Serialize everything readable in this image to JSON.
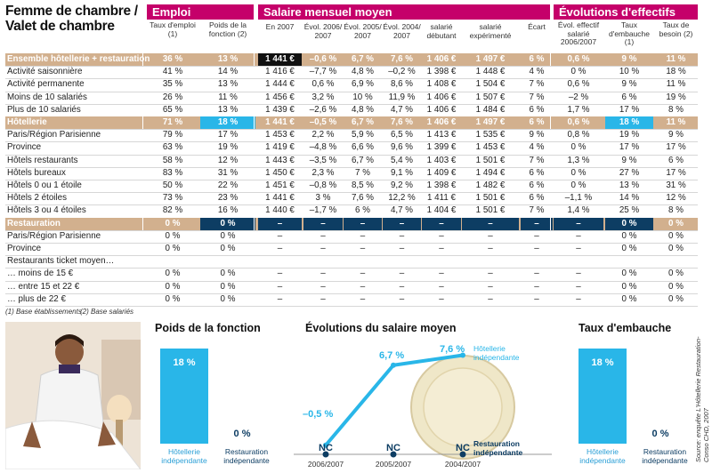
{
  "title": "Femme de chambre / Valet de chambre",
  "groups": {
    "emploi": "Emploi",
    "salaire": "Salaire mensuel moyen",
    "effectifs": "Évolutions d'effectifs"
  },
  "columns": [
    "Taux d'emploi (1)",
    "Poids de la fonction (2)",
    "En 2007",
    "Évol. 2006/ 2007",
    "Évol. 2005/ 2007",
    "Évol. 2004/ 2007",
    "salarié débutant",
    "salarié expérimenté",
    "Écart",
    "Évol. effectif salarié 2006/2007",
    "Taux d'embauche (1)",
    "Taux de besoin (2)"
  ],
  "rows": [
    {
      "label": "Ensemble hôtellerie + restauration",
      "hl": true,
      "v": [
        "36 %",
        "13 %",
        "1 441 €",
        "–0,6 %",
        "6,7 %",
        "7,6 %",
        "1 406 €",
        "1 497 €",
        "6 %",
        "0,6 %",
        "9 %",
        "11 %"
      ]
    },
    {
      "label": "Activité saisonnière",
      "v": [
        "41 %",
        "14 %",
        "1 416 €",
        "–7,7 %",
        "4,8 %",
        "–0,2 %",
        "1 398 €",
        "1 448 €",
        "4 %",
        "0 %",
        "10 %",
        "18 %"
      ]
    },
    {
      "label": "Activité permanente",
      "v": [
        "35 %",
        "13 %",
        "1 444 €",
        "0,6 %",
        "6,9 %",
        "8,6 %",
        "1 408 €",
        "1 504 €",
        "7 %",
        "0,6 %",
        "9 %",
        "11 %"
      ]
    },
    {
      "label": "Moins de 10 salariés",
      "v": [
        "26 %",
        "11 %",
        "1 456 €",
        "3,2 %",
        "10 %",
        "11,9 %",
        "1 406 €",
        "1 507 €",
        "7 %",
        "–2 %",
        "6 %",
        "19 %"
      ]
    },
    {
      "label": "Plus de 10 salariés",
      "v": [
        "65 %",
        "13 %",
        "1 439 €",
        "–2,6 %",
        "4,8 %",
        "4,7 %",
        "1 406 €",
        "1 484 €",
        "6 %",
        "1,7 %",
        "17 %",
        "8 %"
      ]
    },
    {
      "label": "Hôtellerie",
      "hl": true,
      "v": [
        "71 %",
        "18 %",
        "1 441 €",
        "–0,5 %",
        "6,7 %",
        "7,6 %",
        "1 406 €",
        "1 497 €",
        "6 %",
        "0,6 %",
        "18 %",
        "11 %"
      ]
    },
    {
      "label": "Paris/Région Parisienne",
      "v": [
        "79 %",
        "17 %",
        "1 453 €",
        "2,2 %",
        "5,9 %",
        "6,5 %",
        "1 413 €",
        "1 535 €",
        "9 %",
        "0,8 %",
        "19 %",
        "9 %"
      ]
    },
    {
      "label": "Province",
      "v": [
        "63 %",
        "19 %",
        "1 419 €",
        "–4,8 %",
        "6,6 %",
        "9,6 %",
        "1 399 €",
        "1 453 €",
        "4 %",
        "0 %",
        "17 %",
        "17 %"
      ]
    },
    {
      "label": "Hôtels restaurants",
      "v": [
        "58 %",
        "12 %",
        "1 443 €",
        "–3,5 %",
        "6,7 %",
        "5,4 %",
        "1 403 €",
        "1 501 €",
        "7 %",
        "1,3 %",
        "9 %",
        "6 %"
      ]
    },
    {
      "label": "Hôtels bureaux",
      "v": [
        "83 %",
        "31 %",
        "1 450 €",
        "2,3 %",
        "7 %",
        "9,1 %",
        "1 409 €",
        "1 494 €",
        "6 %",
        "0 %",
        "27 %",
        "17 %"
      ]
    },
    {
      "label": "Hôtels 0 ou 1 étoile",
      "v": [
        "50 %",
        "22 %",
        "1 451 €",
        "–0,8 %",
        "8,5 %",
        "9,2 %",
        "1 398 €",
        "1 482 €",
        "6 %",
        "0 %",
        "13 %",
        "31 %"
      ]
    },
    {
      "label": "Hôtels 2 étoiles",
      "v": [
        "73 %",
        "23 %",
        "1 441 €",
        "3 %",
        "7,6 %",
        "12,2 %",
        "1 411 €",
        "1 501 €",
        "6 %",
        "–1,1 %",
        "14 %",
        "12 %"
      ]
    },
    {
      "label": "Hôtels 3 ou 4 étoiles",
      "v": [
        "82 %",
        "16 %",
        "1 440 €",
        "–1,7 %",
        "6 %",
        "4,7 %",
        "1 404 €",
        "1 501 €",
        "7 %",
        "1,4 %",
        "25 %",
        "8 %"
      ]
    },
    {
      "label": "Restauration",
      "hl": true,
      "v": [
        "0 %",
        "0 %",
        "–",
        "–",
        "–",
        "–",
        "–",
        "–",
        "–",
        "–",
        "0 %",
        "0 %"
      ]
    },
    {
      "label": "Paris/Région Parisienne",
      "v": [
        "0 %",
        "0 %",
        "–",
        "–",
        "–",
        "–",
        "–",
        "–",
        "–",
        "–",
        "0 %",
        "0 %"
      ]
    },
    {
      "label": "Province",
      "v": [
        "0 %",
        "0 %",
        "–",
        "–",
        "–",
        "–",
        "–",
        "–",
        "–",
        "–",
        "0 %",
        "0 %"
      ]
    },
    {
      "label": "Restaurants ticket moyen…",
      "v": [
        "",
        "",
        "",
        "",
        "",
        "",
        "",
        "",
        "",
        "",
        "",
        ""
      ]
    },
    {
      "label": "… moins de 15 €",
      "v": [
        "0 %",
        "0 %",
        "–",
        "–",
        "–",
        "–",
        "–",
        "–",
        "–",
        "–",
        "0 %",
        "0 %"
      ]
    },
    {
      "label": "… entre 15 et 22 €",
      "v": [
        "0 %",
        "0 %",
        "–",
        "–",
        "–",
        "–",
        "–",
        "–",
        "–",
        "–",
        "0 %",
        "0 %"
      ]
    },
    {
      "label": "… plus de 22 €",
      "v": [
        "0 %",
        "0 %",
        "–",
        "–",
        "–",
        "–",
        "–",
        "–",
        "–",
        "–",
        "0 %",
        "0 %"
      ]
    }
  ],
  "notes": {
    "n1": "(1) Base établissements",
    "n2": "(2) Base salariés"
  },
  "source": "Source: enquête L'Hôtellerie Restauration-Conso CHD, 2007",
  "chart_data": [
    {
      "type": "bar",
      "title": "Poids de la fonction",
      "categories": [
        "Hôtellerie indépendante",
        "Restauration indépendante"
      ],
      "values": [
        18,
        0
      ],
      "value_labels": [
        "18 %",
        "0 %"
      ],
      "colors": [
        "#29b6e8",
        "#0d3d63"
      ]
    },
    {
      "type": "line",
      "title": "Évolutions du salaire moyen",
      "categories": [
        "2006/2007",
        "2005/2007",
        "2004/2007"
      ],
      "series": [
        {
          "name": "Hôtellerie indépendante",
          "values": [
            -0.5,
            6.7,
            7.6
          ],
          "labels": [
            "–0,5 %",
            "6,7 %",
            "7,6 %"
          ],
          "color": "#29b6e8"
        },
        {
          "name": "Restauration indépendante",
          "values": [
            null,
            null,
            null
          ],
          "labels": [
            "NC",
            "NC",
            "NC"
          ],
          "color": "#0d3d63"
        }
      ]
    },
    {
      "type": "bar",
      "title": "Taux d'embauche",
      "categories": [
        "Hôtellerie indépendante",
        "Restauration indépendante"
      ],
      "values": [
        18,
        0
      ],
      "value_labels": [
        "18 %",
        "0 %"
      ],
      "colors": [
        "#29b6e8",
        "#0d3d63"
      ]
    }
  ]
}
